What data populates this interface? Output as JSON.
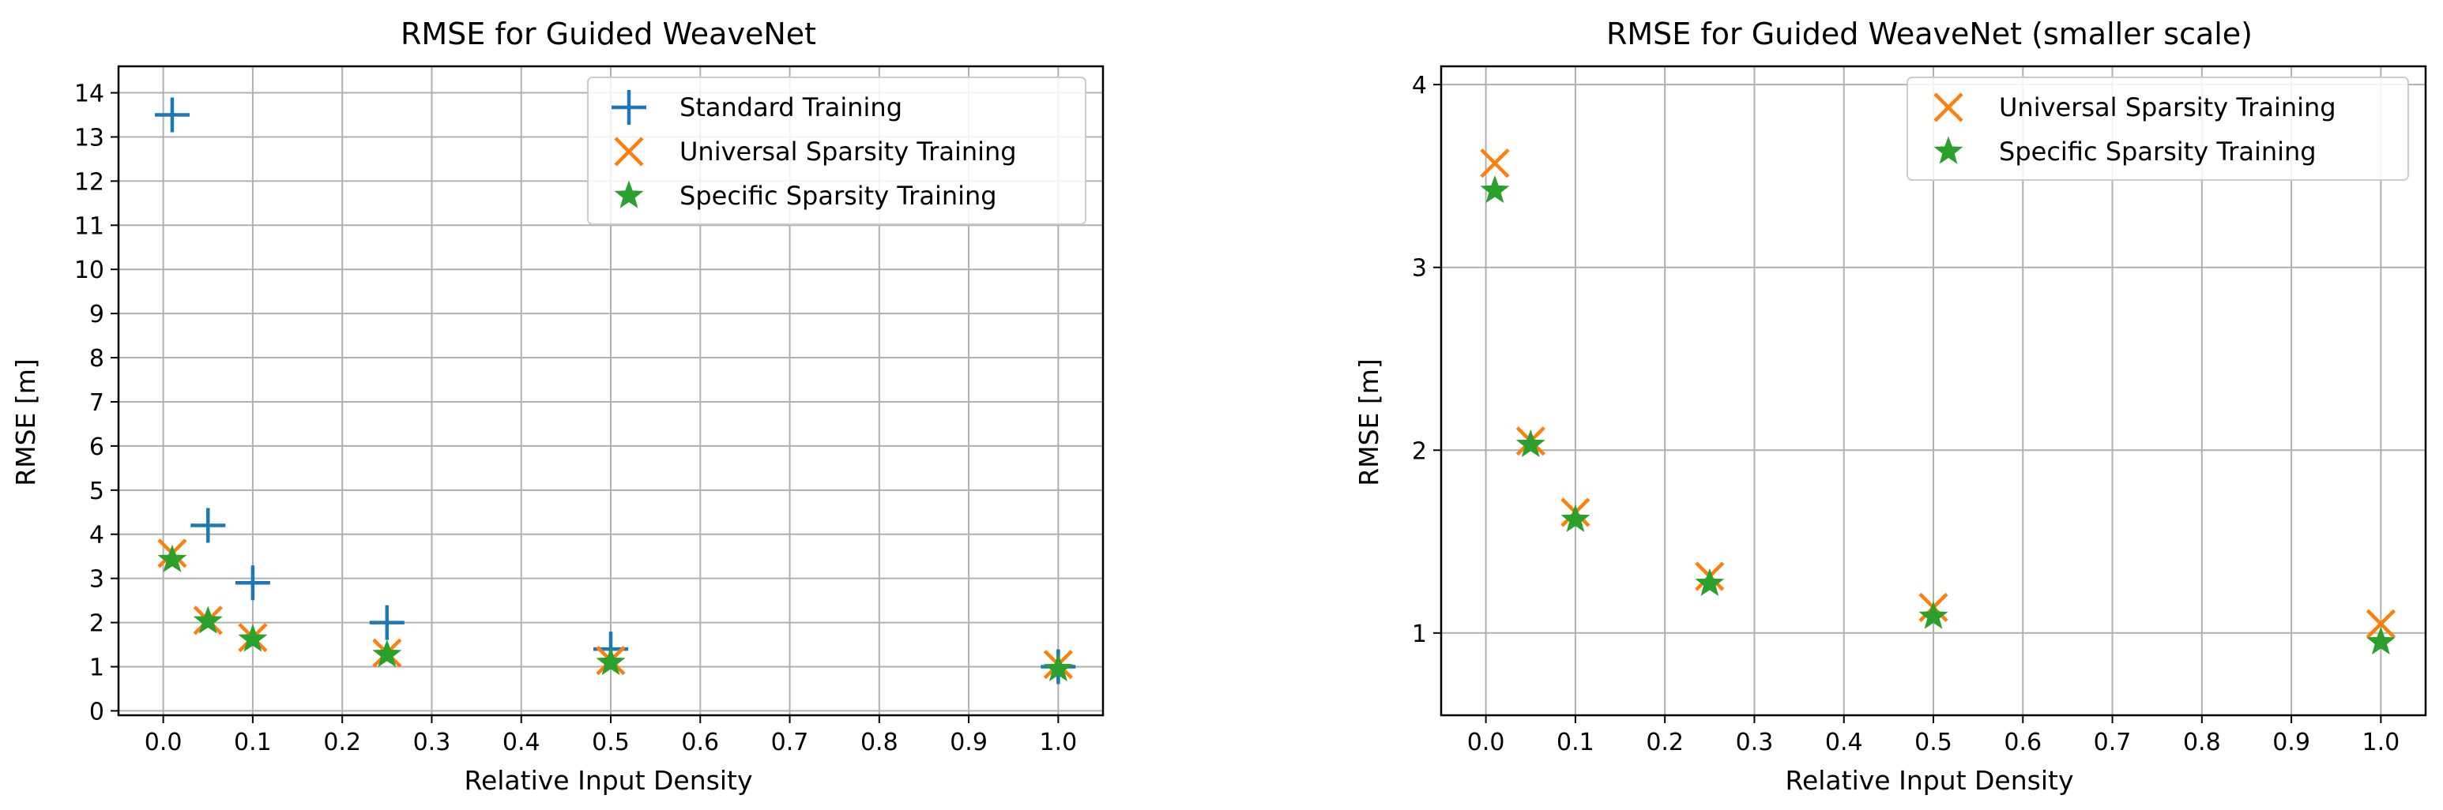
{
  "chart_data": [
    {
      "type": "scatter",
      "title": "RMSE for Guided WeaveNet",
      "xlabel": "Relative Input Density",
      "ylabel": "RMSE [m]",
      "xlim": [
        -0.05,
        1.05
      ],
      "ylim": [
        -0.1,
        14.6
      ],
      "xticks": [
        0.0,
        0.1,
        0.2,
        0.3,
        0.4,
        0.5,
        0.6,
        0.7,
        0.8,
        0.9,
        1.0
      ],
      "xtick_labels": [
        "0.0",
        "0.1",
        "0.2",
        "0.3",
        "0.4",
        "0.5",
        "0.6",
        "0.7",
        "0.8",
        "0.9",
        "1.0"
      ],
      "yticks": [
        0,
        1,
        2,
        3,
        4,
        5,
        6,
        7,
        8,
        9,
        10,
        11,
        12,
        13,
        14
      ],
      "ytick_labels": [
        "0",
        "1",
        "2",
        "3",
        "4",
        "5",
        "6",
        "7",
        "8",
        "9",
        "10",
        "11",
        "12",
        "13",
        "14"
      ],
      "grid": true,
      "legend_position": "top-right",
      "series": [
        {
          "name": "Standard Training",
          "marker": "plus",
          "color": "#1f77b4",
          "points": [
            {
              "x": 0.01,
              "y": 13.5
            },
            {
              "x": 0.05,
              "y": 4.2
            },
            {
              "x": 0.1,
              "y": 2.9
            },
            {
              "x": 0.25,
              "y": 2.0
            },
            {
              "x": 0.5,
              "y": 1.4
            },
            {
              "x": 1.0,
              "y": 1.0
            }
          ]
        },
        {
          "name": "Universal Sparsity Training",
          "marker": "x",
          "color": "#ff7f0e",
          "points": [
            {
              "x": 0.01,
              "y": 3.57
            },
            {
              "x": 0.05,
              "y": 2.05
            },
            {
              "x": 0.1,
              "y": 1.66
            },
            {
              "x": 0.25,
              "y": 1.31
            },
            {
              "x": 0.5,
              "y": 1.14
            },
            {
              "x": 1.0,
              "y": 1.05
            }
          ]
        },
        {
          "name": "Specific Sparsity Training",
          "marker": "star",
          "color": "#2ca02c",
          "points": [
            {
              "x": 0.01,
              "y": 3.42
            },
            {
              "x": 0.05,
              "y": 2.03
            },
            {
              "x": 0.1,
              "y": 1.62
            },
            {
              "x": 0.25,
              "y": 1.27
            },
            {
              "x": 0.5,
              "y": 1.09
            },
            {
              "x": 1.0,
              "y": 0.95
            }
          ]
        }
      ]
    },
    {
      "type": "scatter",
      "title": "RMSE for Guided WeaveNet (smaller scale)",
      "xlabel": "Relative Input Density",
      "ylabel": "RMSE [m]",
      "xlim": [
        -0.05,
        1.05
      ],
      "ylim": [
        0.55,
        4.1
      ],
      "xticks": [
        0.0,
        0.1,
        0.2,
        0.3,
        0.4,
        0.5,
        0.6,
        0.7,
        0.8,
        0.9,
        1.0
      ],
      "xtick_labels": [
        "0.0",
        "0.1",
        "0.2",
        "0.3",
        "0.4",
        "0.5",
        "0.6",
        "0.7",
        "0.8",
        "0.9",
        "1.0"
      ],
      "yticks": [
        1,
        2,
        3,
        4
      ],
      "ytick_labels": [
        "1",
        "2",
        "3",
        "4"
      ],
      "grid": true,
      "legend_position": "top-right",
      "series": [
        {
          "name": "Universal Sparsity Training",
          "marker": "x",
          "color": "#ff7f0e",
          "points": [
            {
              "x": 0.01,
              "y": 3.57
            },
            {
              "x": 0.05,
              "y": 2.05
            },
            {
              "x": 0.1,
              "y": 1.66
            },
            {
              "x": 0.25,
              "y": 1.31
            },
            {
              "x": 0.5,
              "y": 1.14
            },
            {
              "x": 1.0,
              "y": 1.05
            }
          ]
        },
        {
          "name": "Specific Sparsity Training",
          "marker": "star",
          "color": "#2ca02c",
          "points": [
            {
              "x": 0.01,
              "y": 3.42
            },
            {
              "x": 0.05,
              "y": 2.03
            },
            {
              "x": 0.1,
              "y": 1.62
            },
            {
              "x": 0.25,
              "y": 1.27
            },
            {
              "x": 0.5,
              "y": 1.09
            },
            {
              "x": 1.0,
              "y": 0.95
            }
          ]
        }
      ]
    }
  ]
}
